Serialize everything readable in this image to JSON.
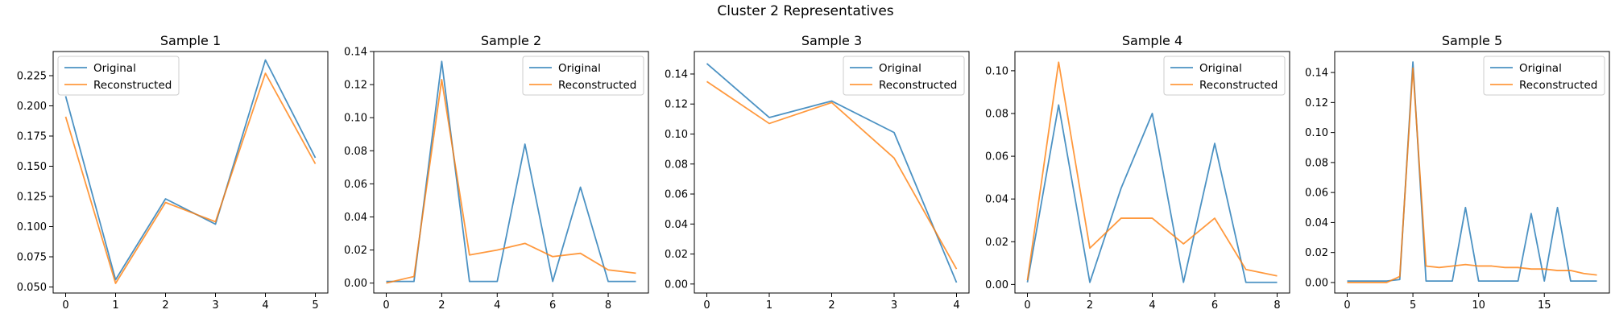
{
  "figure": {
    "title": "Cluster 2 Representatives"
  },
  "colors": {
    "original": "#1f77b4",
    "reconstructed": "#ff7f0e"
  },
  "chart_data": [
    {
      "type": "line",
      "title": "Sample 1",
      "xlim": [
        -0.25,
        5.25
      ],
      "ylim": [
        0.045,
        0.245
      ],
      "xticks": [
        0,
        1,
        2,
        3,
        4,
        5
      ],
      "yticks": [
        0.05,
        0.075,
        0.1,
        0.125,
        0.15,
        0.175,
        0.2,
        0.225
      ],
      "ytick_labels": [
        "0.050",
        "0.075",
        "0.100",
        "0.125",
        "0.150",
        "0.175",
        "0.200",
        "0.225"
      ],
      "legend": "top-left",
      "series": [
        {
          "name": "Original",
          "color": "#1f77b4",
          "x": [
            0,
            1,
            2,
            3,
            4,
            5
          ],
          "values": [
            0.208,
            0.056,
            0.123,
            0.102,
            0.238,
            0.157
          ]
        },
        {
          "name": "Reconstructed",
          "color": "#ff7f0e",
          "x": [
            0,
            1,
            2,
            3,
            4,
            5
          ],
          "values": [
            0.191,
            0.053,
            0.12,
            0.104,
            0.227,
            0.152
          ]
        }
      ]
    },
    {
      "type": "line",
      "title": "Sample 2",
      "xlim": [
        -0.45,
        9.45
      ],
      "ylim": [
        -0.006,
        0.14
      ],
      "xticks": [
        0,
        2,
        4,
        6,
        8
      ],
      "yticks": [
        0,
        0.02,
        0.04,
        0.06,
        0.08,
        0.1,
        0.12,
        0.14
      ],
      "ytick_labels": [
        "0.00",
        "0.02",
        "0.04",
        "0.06",
        "0.08",
        "0.10",
        "0.12",
        "0.14"
      ],
      "legend": "top-right",
      "series": [
        {
          "name": "Original",
          "color": "#1f77b4",
          "x": [
            0,
            1,
            2,
            3,
            4,
            5,
            6,
            7,
            8,
            9
          ],
          "values": [
            0.001,
            0.001,
            0.134,
            0.001,
            0.001,
            0.084,
            0.001,
            0.058,
            0.001,
            0.001
          ]
        },
        {
          "name": "Reconstructed",
          "color": "#ff7f0e",
          "x": [
            0,
            1,
            2,
            3,
            4,
            5,
            6,
            7,
            8,
            9
          ],
          "values": [
            0.0,
            0.004,
            0.123,
            0.017,
            0.02,
            0.024,
            0.016,
            0.018,
            0.008,
            0.006
          ]
        }
      ]
    },
    {
      "type": "line",
      "title": "Sample 3",
      "xlim": [
        -0.2,
        4.2
      ],
      "ylim": [
        -0.006,
        0.155
      ],
      "xticks": [
        0,
        1,
        2,
        3,
        4
      ],
      "yticks": [
        0,
        0.02,
        0.04,
        0.06,
        0.08,
        0.1,
        0.12,
        0.14
      ],
      "ytick_labels": [
        "0.00",
        "0.02",
        "0.04",
        "0.06",
        "0.08",
        "0.10",
        "0.12",
        "0.14"
      ],
      "legend": "top-right",
      "series": [
        {
          "name": "Original",
          "color": "#1f77b4",
          "x": [
            0,
            1,
            2,
            3,
            4
          ],
          "values": [
            0.147,
            0.111,
            0.122,
            0.101,
            0.001
          ]
        },
        {
          "name": "Reconstructed",
          "color": "#ff7f0e",
          "x": [
            0,
            1,
            2,
            3,
            4
          ],
          "values": [
            0.135,
            0.107,
            0.121,
            0.084,
            0.01
          ]
        }
      ]
    },
    {
      "type": "line",
      "title": "Sample 4",
      "xlim": [
        -0.4,
        8.4
      ],
      "ylim": [
        -0.004,
        0.109
      ],
      "xticks": [
        0,
        2,
        4,
        6,
        8
      ],
      "yticks": [
        0,
        0.02,
        0.04,
        0.06,
        0.08,
        0.1
      ],
      "ytick_labels": [
        "0.00",
        "0.02",
        "0.04",
        "0.06",
        "0.08",
        "0.10"
      ],
      "legend": "top-right",
      "series": [
        {
          "name": "Original",
          "color": "#1f77b4",
          "x": [
            0,
            1,
            2,
            3,
            4,
            5,
            6,
            7,
            8
          ],
          "values": [
            0.001,
            0.084,
            0.001,
            0.045,
            0.08,
            0.001,
            0.066,
            0.001,
            0.001
          ]
        },
        {
          "name": "Reconstructed",
          "color": "#ff7f0e",
          "x": [
            0,
            1,
            2,
            3,
            4,
            5,
            6,
            7,
            8
          ],
          "values": [
            0.002,
            0.104,
            0.017,
            0.031,
            0.031,
            0.019,
            0.031,
            0.007,
            0.004
          ]
        }
      ]
    },
    {
      "type": "line",
      "title": "Sample 5",
      "xlim": [
        -0.95,
        19.95
      ],
      "ylim": [
        -0.007,
        0.154
      ],
      "xticks": [
        0,
        5,
        10,
        15
      ],
      "yticks": [
        0,
        0.02,
        0.04,
        0.06,
        0.08,
        0.1,
        0.12,
        0.14
      ],
      "ytick_labels": [
        "0.00",
        "0.02",
        "0.04",
        "0.06",
        "0.08",
        "0.10",
        "0.12",
        "0.14"
      ],
      "legend": "top-right",
      "series": [
        {
          "name": "Original",
          "color": "#1f77b4",
          "x": [
            0,
            1,
            2,
            3,
            4,
            5,
            6,
            7,
            8,
            9,
            10,
            11,
            12,
            13,
            14,
            15,
            16,
            17,
            18,
            19
          ],
          "values": [
            0.001,
            0.001,
            0.001,
            0.001,
            0.002,
            0.147,
            0.001,
            0.001,
            0.001,
            0.05,
            0.001,
            0.001,
            0.001,
            0.001,
            0.046,
            0.001,
            0.05,
            0.001,
            0.001,
            0.001
          ]
        },
        {
          "name": "Reconstructed",
          "color": "#ff7f0e",
          "x": [
            0,
            1,
            2,
            3,
            4,
            5,
            6,
            7,
            8,
            9,
            10,
            11,
            12,
            13,
            14,
            15,
            16,
            17,
            18,
            19
          ],
          "values": [
            0.0,
            0.0,
            0.0,
            0.0,
            0.004,
            0.143,
            0.011,
            0.01,
            0.011,
            0.012,
            0.011,
            0.011,
            0.01,
            0.01,
            0.009,
            0.009,
            0.008,
            0.008,
            0.006,
            0.005
          ]
        }
      ]
    }
  ]
}
